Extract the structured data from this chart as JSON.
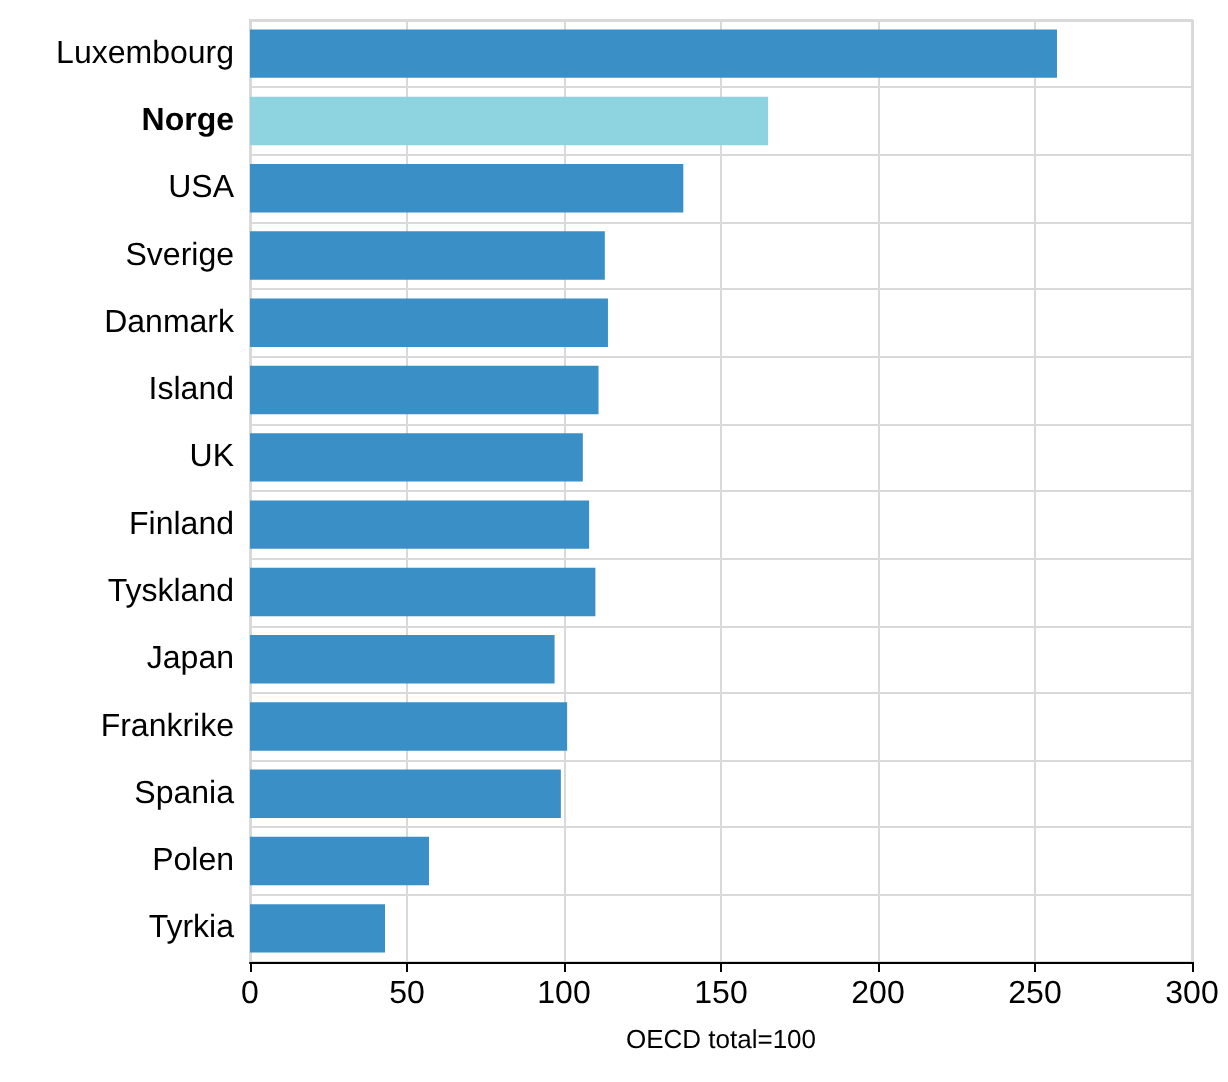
{
  "chart_data": {
    "type": "bar",
    "orientation": "horizontal",
    "xlabel": "OECD total=100",
    "categories": [
      "Luxembourg",
      "Norge",
      "USA",
      "Sverige",
      "Danmark",
      "Island",
      "UK",
      "Finland",
      "Tyskland",
      "Japan",
      "Frankrike",
      "Spania",
      "Polen",
      "Tyrkia"
    ],
    "values": [
      257,
      165,
      138,
      113,
      114,
      111,
      106,
      108,
      110,
      97,
      101,
      99,
      57,
      43
    ],
    "colors": [
      "#3a8fc7",
      "#8dd3e0",
      "#3a8fc7",
      "#3a8fc7",
      "#3a8fc7",
      "#3a8fc7",
      "#3a8fc7",
      "#3a8fc7",
      "#3a8fc7",
      "#3a8fc7",
      "#3a8fc7",
      "#3a8fc7",
      "#3a8fc7",
      "#3a8fc7"
    ],
    "xlim": [
      0,
      300
    ],
    "xticks": [
      0,
      50,
      100,
      150,
      200,
      250,
      300
    ],
    "grid": true
  }
}
